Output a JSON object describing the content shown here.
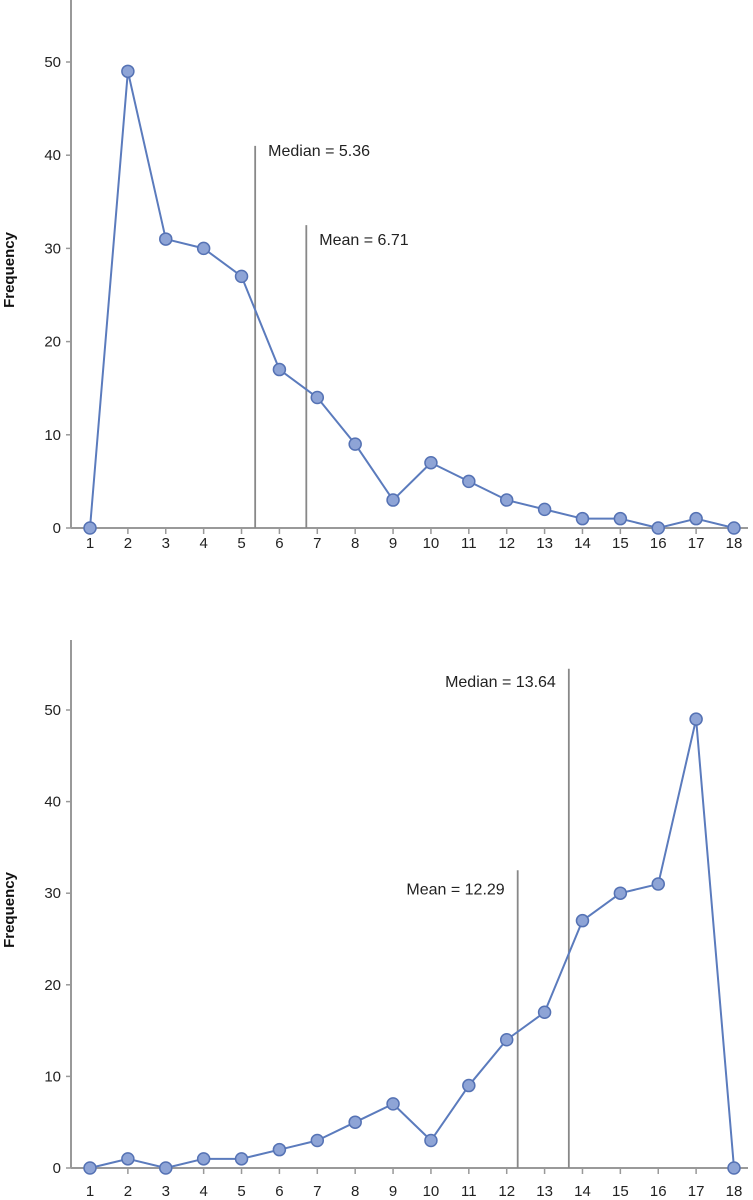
{
  "chart_data": [
    {
      "type": "line",
      "title": "",
      "xlabel": "",
      "ylabel": "Frequency",
      "x": [
        1,
        2,
        3,
        4,
        5,
        6,
        7,
        8,
        9,
        10,
        11,
        12,
        13,
        14,
        15,
        16,
        17,
        18
      ],
      "series": [
        {
          "values": [
            0,
            49,
            31,
            30,
            27,
            17,
            14,
            9,
            3,
            7,
            5,
            3,
            2,
            1,
            1,
            0,
            1,
            0
          ]
        }
      ],
      "xlim": [
        1,
        18
      ],
      "ylim": [
        0,
        55
      ],
      "yticks": [
        0,
        10,
        20,
        30,
        40,
        50
      ],
      "grid": false,
      "colors": {
        "line": "#5b7bbd",
        "marker_fill": "#8ea4d6",
        "marker_stroke": "#5572b4",
        "reference_line": "#888888",
        "axis": "#999999"
      },
      "annotations": [
        {
          "label": "Median = 5.36",
          "x": 5.36,
          "y_top": 41
        },
        {
          "label": "Mean = 6.71",
          "x": 6.71,
          "y_top": 32.5
        }
      ]
    },
    {
      "type": "line",
      "title": "",
      "xlabel": "",
      "ylabel": "Frequency",
      "x": [
        1,
        2,
        3,
        4,
        5,
        6,
        7,
        8,
        9,
        10,
        11,
        12,
        13,
        14,
        15,
        16,
        17,
        18
      ],
      "series": [
        {
          "values": [
            0,
            1,
            0,
            1,
            1,
            2,
            3,
            5,
            7,
            3,
            9,
            14,
            17,
            27,
            30,
            31,
            49,
            0
          ]
        }
      ],
      "xlim": [
        1,
        18
      ],
      "ylim": [
        0,
        55
      ],
      "yticks": [
        0,
        10,
        20,
        30,
        40,
        50
      ],
      "grid": false,
      "colors": {
        "line": "#5b7bbd",
        "marker_fill": "#8ea4d6",
        "marker_stroke": "#5572b4",
        "reference_line": "#888888",
        "axis": "#999999"
      },
      "annotations": [
        {
          "label": "Median = 13.64",
          "x": 13.64,
          "y_top": 54.5
        },
        {
          "label": "Mean = 12.29",
          "x": 12.29,
          "y_top": 32.5
        }
      ]
    }
  ]
}
